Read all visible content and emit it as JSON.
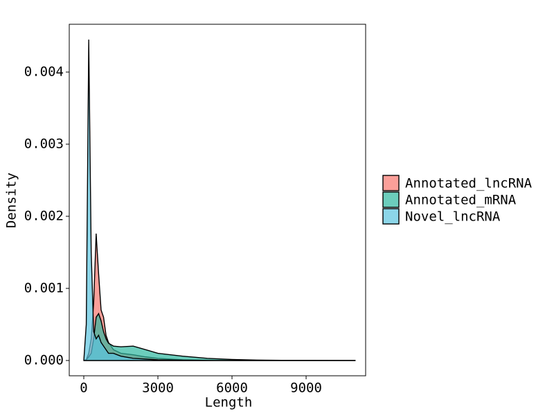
{
  "chart_data": {
    "type": "density",
    "x_label": "Length",
    "y_label": "Density",
    "x": [
      0,
      100,
      200,
      300,
      400,
      500,
      600,
      700,
      800,
      900,
      1000,
      1200,
      1500,
      2000,
      2500,
      3000,
      4000,
      5000,
      6000,
      7000,
      8000,
      9000,
      10000,
      11000
    ],
    "series": [
      {
        "name": "Annotated_lncRNA",
        "color": "#F8766D",
        "values": [
          0,
          1e-05,
          0.0001,
          0.0003,
          0.0008,
          0.00176,
          0.0012,
          0.0007,
          0.0006,
          0.00035,
          0.00025,
          0.00015,
          0.0001,
          8e-05,
          5e-05,
          3e-05,
          1e-05,
          5e-06,
          2e-06,
          0,
          0,
          0,
          0,
          0
        ]
      },
      {
        "name": "Annotated_mRNA",
        "color": "#2EB8A0",
        "values": [
          0,
          1e-05,
          5e-05,
          0.0001,
          0.0003,
          0.0006,
          0.00065,
          0.00055,
          0.0004,
          0.0003,
          0.00024,
          0.0002,
          0.00019,
          0.0002,
          0.00015,
          0.0001,
          6e-05,
          3e-05,
          1.5e-05,
          6e-06,
          3e-06,
          2e-06,
          1e-06,
          0
        ]
      },
      {
        "name": "Novel_lncRNA",
        "color": "#5BC4E0",
        "values": [
          0,
          0.0005,
          0.00445,
          0.0015,
          0.0004,
          0.0003,
          0.00035,
          0.00025,
          0.0002,
          0.00015,
          0.0001,
          0.0001,
          6e-05,
          3e-05,
          2e-05,
          1e-05,
          5e-06,
          0,
          0,
          0,
          0,
          0,
          0,
          0
        ]
      }
    ],
    "xlim": [
      -589,
      11410
    ],
    "ylim": [
      -0.000212,
      0.004663
    ],
    "xticks": [
      0,
      3000,
      6000,
      9000
    ],
    "yticks": [
      {
        "value": 0,
        "label": "0.000"
      },
      {
        "value": 0.001,
        "label": "0.001"
      },
      {
        "value": 0.002,
        "label": "0.002"
      },
      {
        "value": 0.003,
        "label": "0.003"
      },
      {
        "value": 0.004,
        "label": "0.004"
      }
    ],
    "legend": "right"
  }
}
